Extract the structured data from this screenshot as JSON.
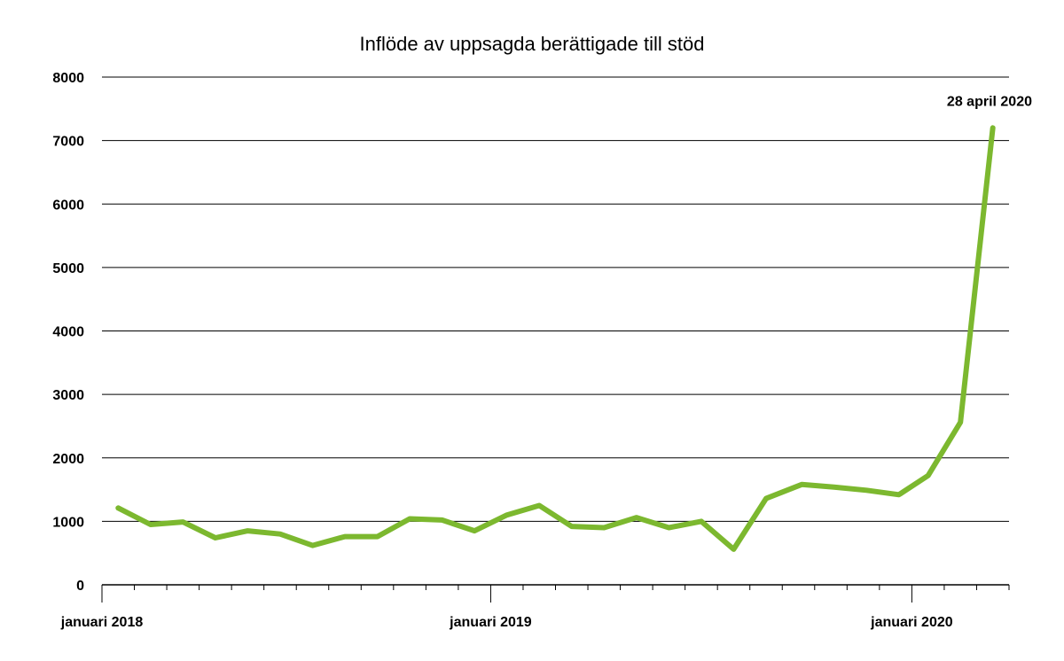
{
  "chart_data": {
    "type": "line",
    "title": "Inflöde av uppsagda berättigade till stöd",
    "xlabel": "",
    "ylabel": "",
    "ylim": [
      0,
      8000
    ],
    "yticks": [
      "0",
      "1000",
      "2000",
      "3000",
      "4000",
      "5000",
      "6000",
      "7000",
      "8000"
    ],
    "x_tick_labels": [
      {
        "label": "januari 2018",
        "month": 0
      },
      {
        "label": "januari 2019",
        "month": 12
      },
      {
        "label": "januari 2020",
        "month": 25
      }
    ],
    "x_month_range": [
      0,
      28
    ],
    "grid": true,
    "legend": "none",
    "color": "#7cb82f",
    "series": [
      {
        "values": [
          {
            "x": 0.5,
            "y": 1210
          },
          {
            "x": 1.5,
            "y": 950
          },
          {
            "x": 2.5,
            "y": 990
          },
          {
            "x": 3.5,
            "y": 740
          },
          {
            "x": 4.5,
            "y": 850
          },
          {
            "x": 5.5,
            "y": 800
          },
          {
            "x": 6.5,
            "y": 620
          },
          {
            "x": 7.5,
            "y": 760
          },
          {
            "x": 8.5,
            "y": 760
          },
          {
            "x": 9.5,
            "y": 1040
          },
          {
            "x": 10.5,
            "y": 1020
          },
          {
            "x": 11.5,
            "y": 850
          },
          {
            "x": 12.5,
            "y": 1100
          },
          {
            "x": 13.5,
            "y": 1250
          },
          {
            "x": 14.5,
            "y": 920
          },
          {
            "x": 15.5,
            "y": 900
          },
          {
            "x": 16.5,
            "y": 1060
          },
          {
            "x": 17.5,
            "y": 900
          },
          {
            "x": 18.5,
            "y": 1000
          },
          {
            "x": 19.5,
            "y": 560
          },
          {
            "x": 20.5,
            "y": 1360
          },
          {
            "x": 21.6,
            "y": 1580
          },
          {
            "x": 22.6,
            "y": 1540
          },
          {
            "x": 23.6,
            "y": 1490
          },
          {
            "x": 24.6,
            "y": 1420
          },
          {
            "x": 25.5,
            "y": 1720
          },
          {
            "x": 26.5,
            "y": 2560
          },
          {
            "x": 27.5,
            "y": 7200
          }
        ]
      }
    ],
    "annotations": [
      {
        "text": "28 april 2020",
        "x": 27.5,
        "y": 7200
      }
    ]
  }
}
